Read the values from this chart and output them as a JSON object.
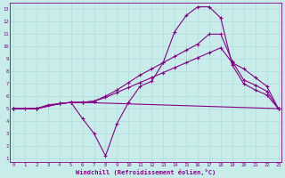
{
  "background_color": "#c8ecea",
  "grid_color": "#b0dddd",
  "line_color": "#880088",
  "xlabel": "Windchill (Refroidissement éolien,°C)",
  "xlim": [
    -0.3,
    23.3
  ],
  "ylim": [
    0.7,
    13.5
  ],
  "xticks": [
    0,
    1,
    2,
    3,
    4,
    5,
    6,
    7,
    8,
    9,
    10,
    11,
    12,
    13,
    14,
    15,
    16,
    17,
    18,
    19,
    20,
    21,
    22,
    23
  ],
  "yticks": [
    1,
    2,
    3,
    4,
    5,
    6,
    7,
    8,
    9,
    10,
    11,
    12,
    13
  ],
  "line1_x": [
    0,
    1,
    2,
    3,
    4,
    5,
    6,
    7,
    8,
    9,
    10,
    11,
    12,
    13,
    14,
    15,
    16,
    17,
    18,
    19,
    20,
    21,
    22,
    23
  ],
  "line1_y": [
    5,
    5,
    5,
    5.3,
    5.4,
    5.5,
    4.2,
    3.0,
    1.2,
    3.8,
    5.5,
    6.8,
    7.2,
    8.7,
    11.2,
    12.5,
    13.2,
    13.2,
    12.3,
    8.5,
    7.0,
    6.5,
    6.1,
    5.0
  ],
  "line2_x": [
    0,
    2,
    4,
    5,
    6,
    7,
    8,
    9,
    10,
    11,
    12,
    13,
    14,
    15,
    16,
    17,
    18,
    19,
    20,
    21,
    22,
    23
  ],
  "line2_y": [
    5,
    5,
    5.4,
    5.5,
    5.5,
    5.6,
    6.0,
    6.5,
    7.1,
    7.7,
    8.2,
    8.7,
    9.2,
    9.7,
    10.2,
    11.0,
    11.0,
    8.8,
    7.3,
    6.9,
    6.4,
    5.0
  ],
  "line3_x": [
    0,
    2,
    4,
    5,
    6,
    23
  ],
  "line3_y": [
    5,
    5,
    5.4,
    5.5,
    5.5,
    5.0
  ],
  "line4_x": [
    0,
    2,
    4,
    5,
    6,
    7,
    8,
    9,
    10,
    11,
    12,
    13,
    14,
    15,
    16,
    17,
    18,
    19,
    20,
    21,
    22,
    23
  ],
  "line4_y": [
    5,
    5,
    5.4,
    5.5,
    5.5,
    5.6,
    5.9,
    6.3,
    6.7,
    7.1,
    7.5,
    7.9,
    8.3,
    8.7,
    9.1,
    9.5,
    9.9,
    8.7,
    8.2,
    7.5,
    6.8,
    5.0
  ]
}
